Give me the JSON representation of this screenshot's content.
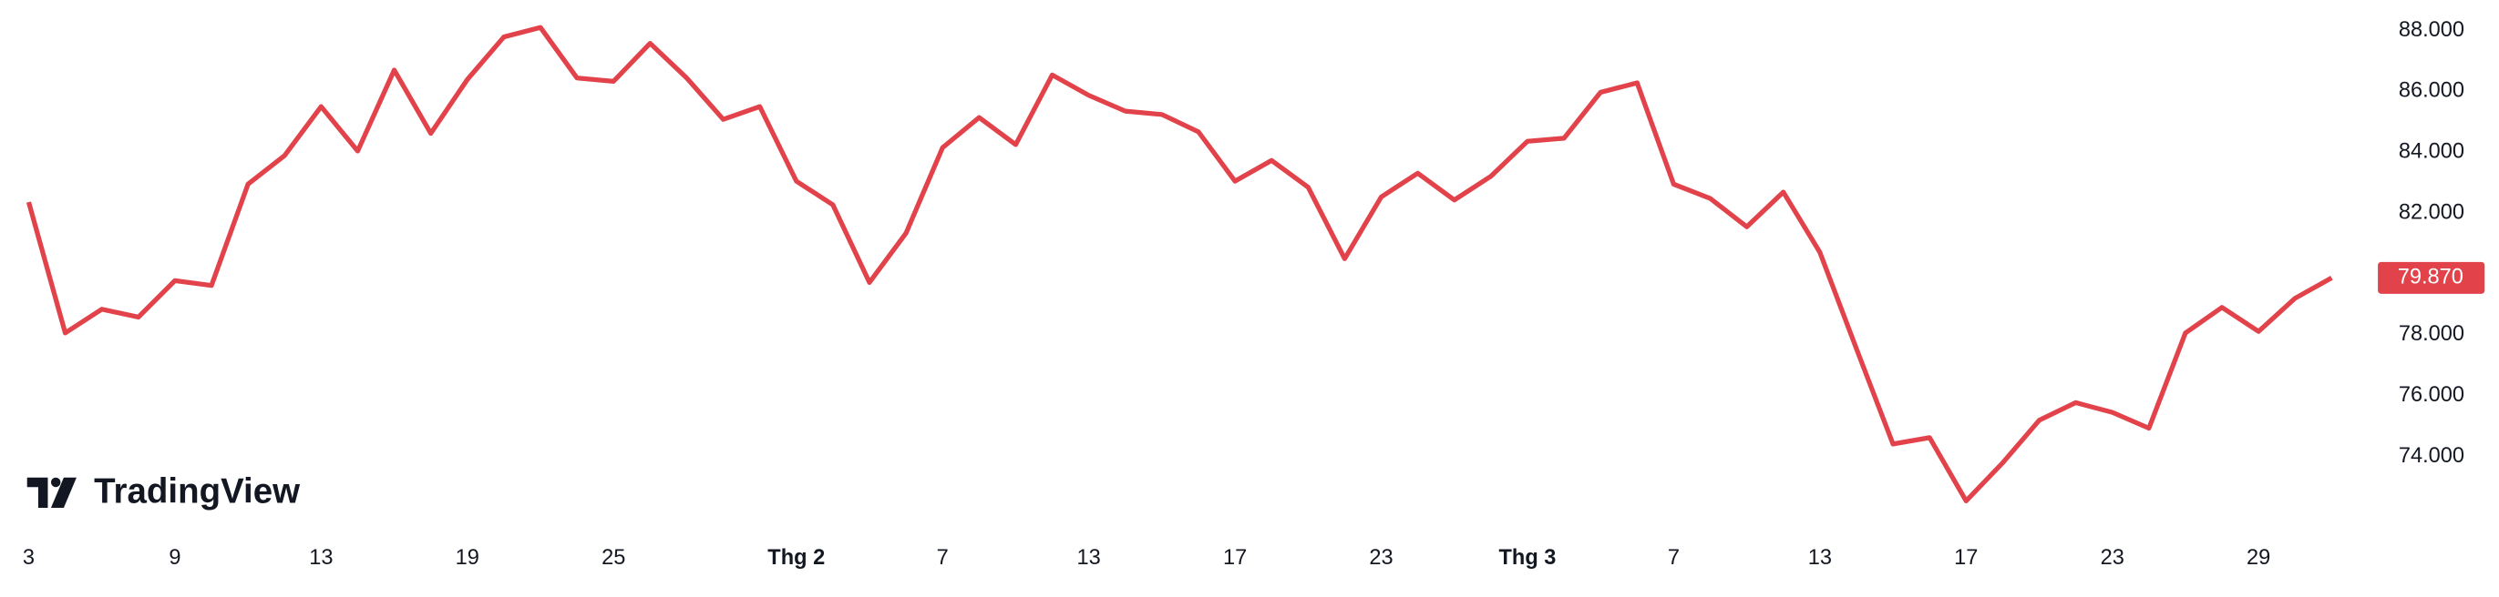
{
  "chart_data": {
    "type": "line",
    "watermark": "TradingView",
    "categories": [
      "3",
      null,
      null,
      null,
      "9",
      null,
      null,
      null,
      "13",
      null,
      null,
      null,
      "19",
      null,
      null,
      null,
      "25",
      null,
      null,
      null,
      null,
      "Thg 2",
      null,
      null,
      null,
      "7",
      null,
      null,
      null,
      "13",
      null,
      null,
      null,
      "17",
      null,
      null,
      null,
      "23",
      null,
      null,
      null,
      "Thg 3",
      null,
      null,
      null,
      "7",
      null,
      null,
      null,
      "13",
      null,
      null,
      null,
      "17",
      null,
      null,
      null,
      "23",
      null,
      null,
      null,
      "29",
      null,
      null
    ],
    "series": [
      {
        "color": "#e2434b",
        "values": [
          82.36,
          78.06,
          78.84,
          78.58,
          79.78,
          79.62,
          82.95,
          83.89,
          85.5,
          84.04,
          86.7,
          84.62,
          86.39,
          87.79,
          88.1,
          86.44,
          86.33,
          87.58,
          86.44,
          85.08,
          85.5,
          83.05,
          82.27,
          79.72,
          81.34,
          84.15,
          85.14,
          84.25,
          86.54,
          85.87,
          85.35,
          85.24,
          84.67,
          83.05,
          83.73,
          82.85,
          80.5,
          82.53,
          83.31,
          82.43,
          83.21,
          84.36,
          84.46,
          85.97,
          86.28,
          82.95,
          82.48,
          81.55,
          82.69,
          80.71,
          77.54,
          74.41,
          74.62,
          72.54,
          73.79,
          75.19,
          75.77,
          75.45,
          74.93,
          78.06,
          78.9,
          78.11,
          79.2,
          79.87
        ],
        "last_value_label": "79.870"
      }
    ],
    "ylim": [
      72,
      89
    ],
    "yticks": [
      {
        "value": 74,
        "label": "74.000"
      },
      {
        "value": 76,
        "label": "76.000"
      },
      {
        "value": 78,
        "label": "78.000"
      },
      {
        "value": 82,
        "label": "82.000"
      },
      {
        "value": 84,
        "label": "84.000"
      },
      {
        "value": 86,
        "label": "86.000"
      },
      {
        "value": 88,
        "label": "88.000"
      }
    ]
  }
}
